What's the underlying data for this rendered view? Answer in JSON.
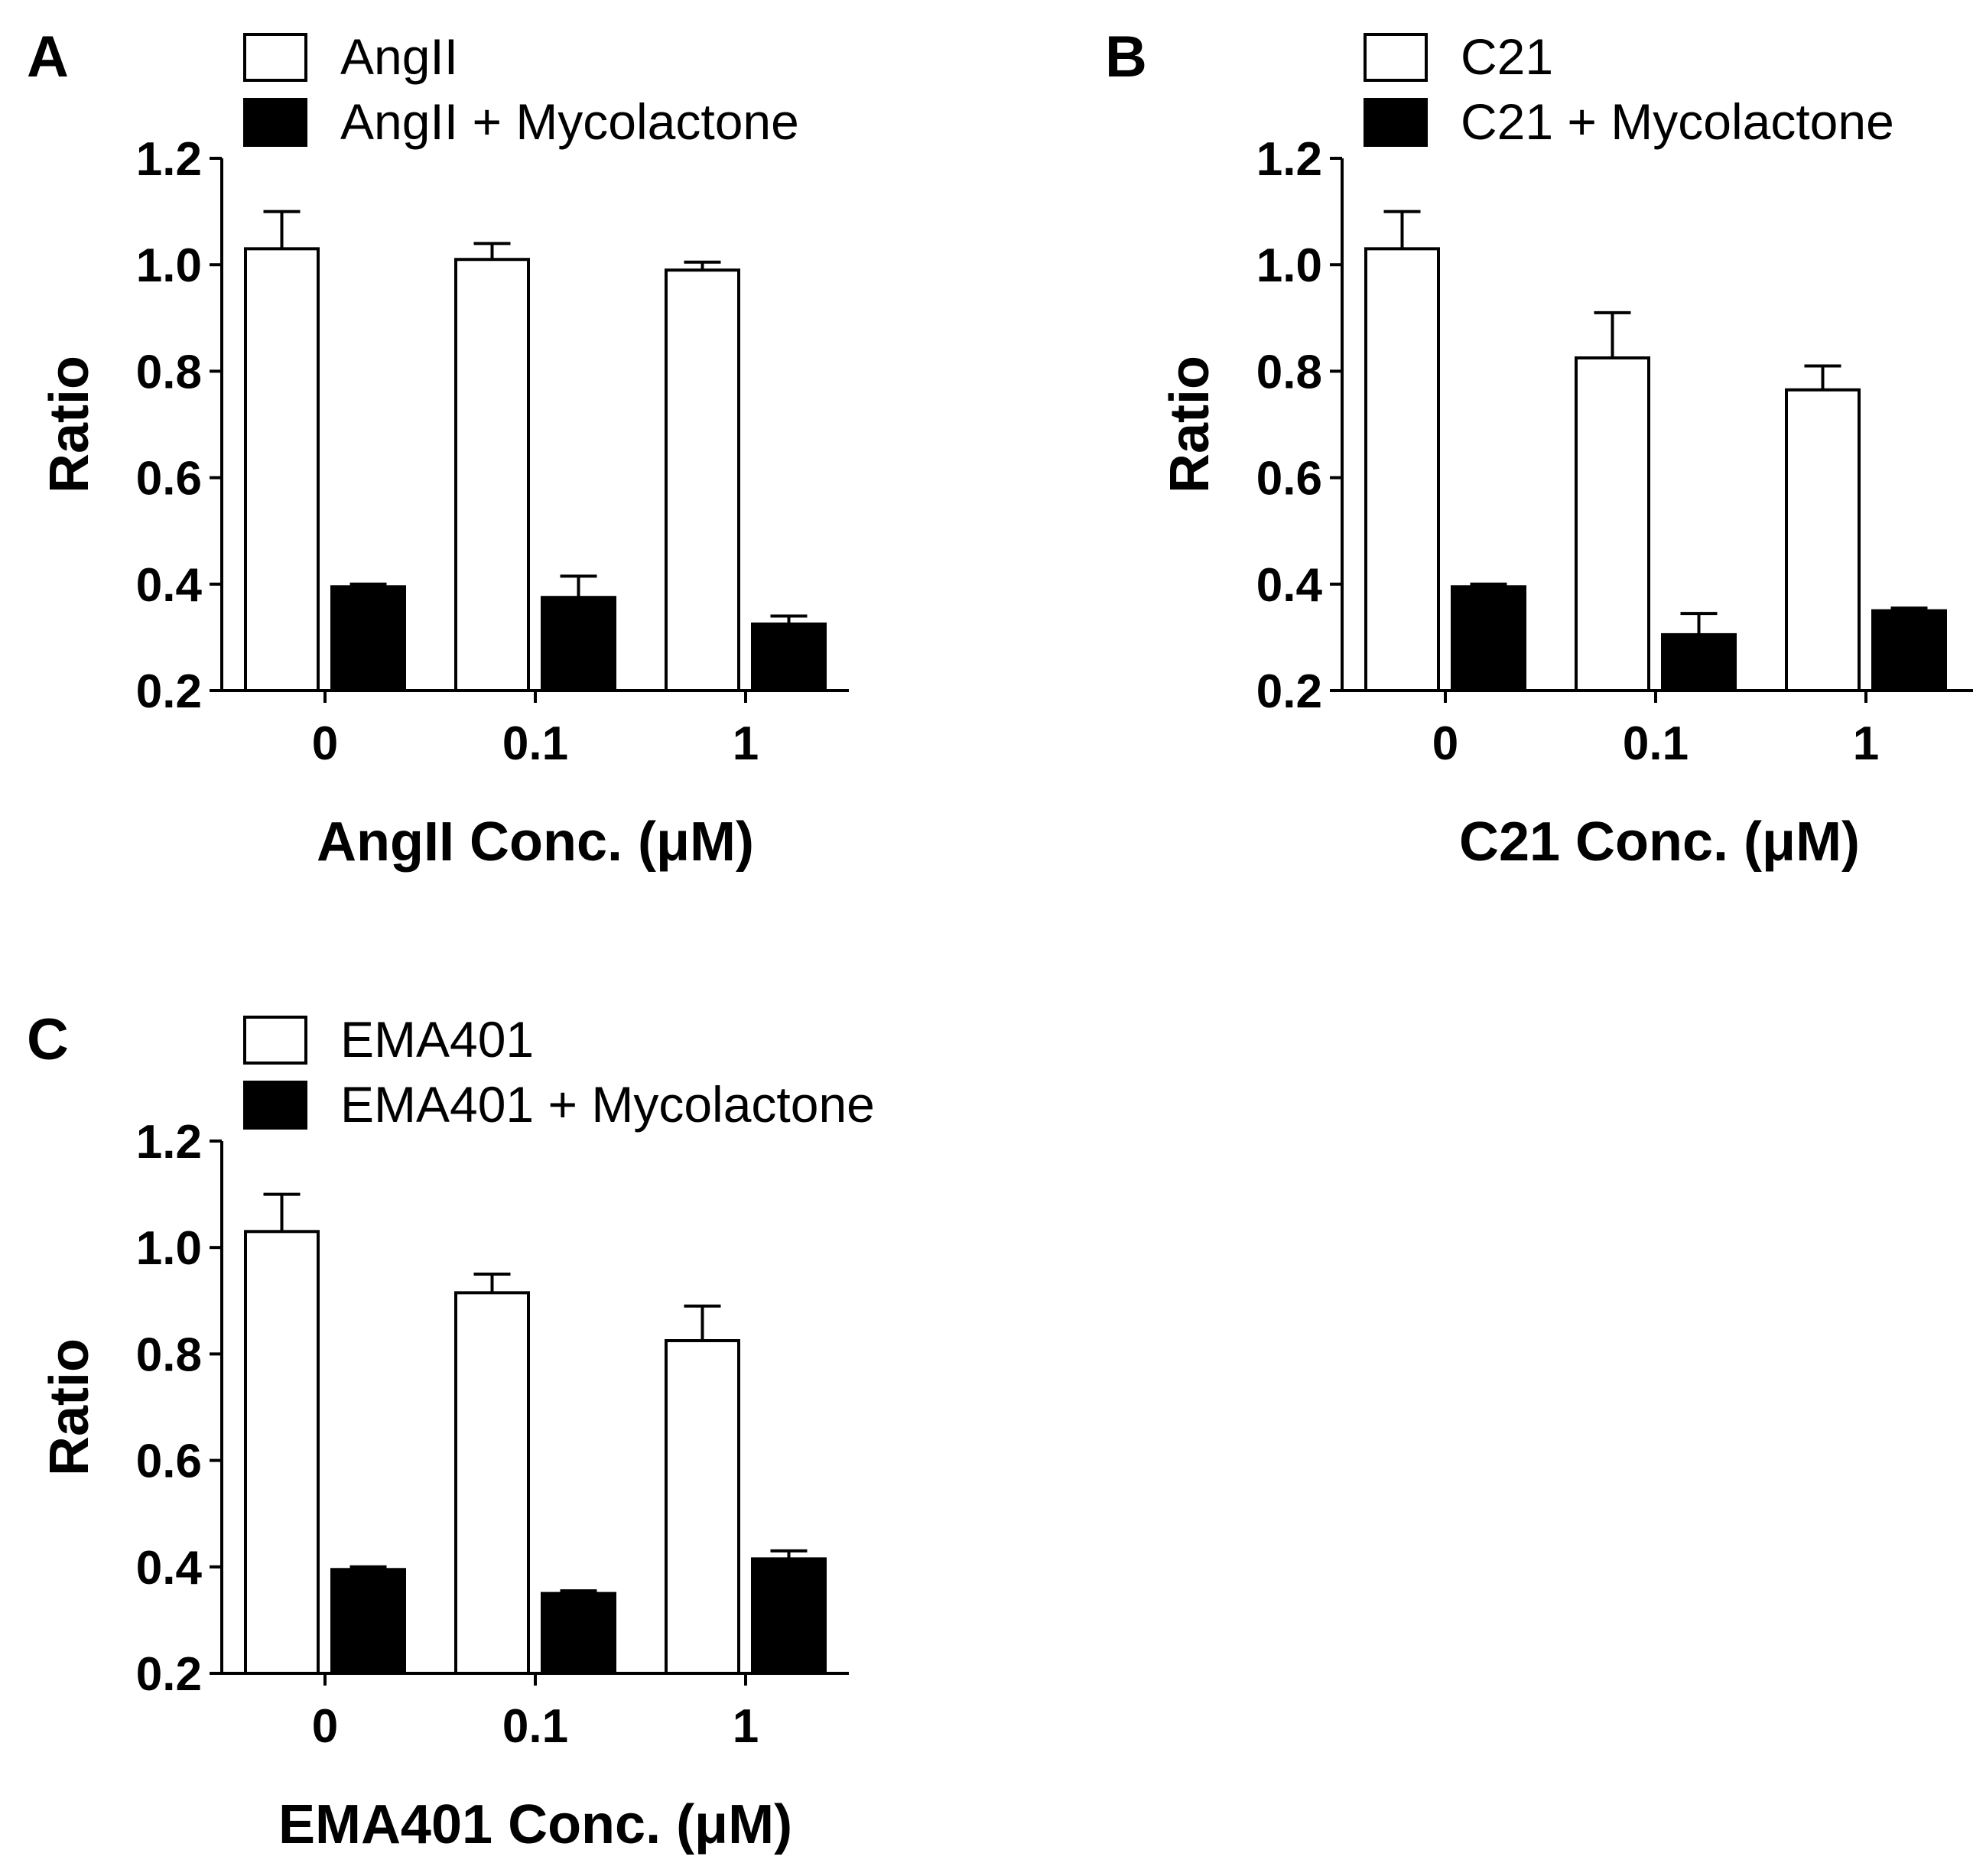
{
  "figure": {
    "colors": {
      "background": "#ffffff",
      "ink": "#000000",
      "open_bar_fill": "#ffffff",
      "filled_bar_fill": "#000000"
    }
  },
  "chart_data": [
    {
      "type": "bar",
      "panel": "A",
      "title": "",
      "xlabel": "AngII Conc. (μM)",
      "ylabel": "Ratio",
      "ylim": [
        0.2,
        1.2
      ],
      "yticks": [
        "0.2",
        "0.4",
        "0.6",
        "0.8",
        "1.0",
        "1.2"
      ],
      "categories": [
        "0",
        "0.1",
        "1"
      ],
      "legend_position": "top-left",
      "series": [
        {
          "name": "AngII",
          "fill": "open",
          "values": [
            1.03,
            1.01,
            0.99
          ],
          "errors": [
            0.07,
            0.03,
            0.015
          ]
        },
        {
          "name": "AngII + Mycolactone",
          "fill": "solid",
          "values": [
            0.395,
            0.375,
            0.325
          ],
          "errors": [
            0.005,
            0.04,
            0.015
          ]
        }
      ]
    },
    {
      "type": "bar",
      "panel": "B",
      "title": "",
      "xlabel": "C21 Conc. (μM)",
      "ylabel": "Ratio",
      "ylim": [
        0.2,
        1.2
      ],
      "yticks": [
        "0.2",
        "0.4",
        "0.6",
        "0.8",
        "1.0",
        "1.2"
      ],
      "categories": [
        "0",
        "0.1",
        "1"
      ],
      "legend_position": "top-left",
      "series": [
        {
          "name": "C21",
          "fill": "open",
          "values": [
            1.03,
            0.825,
            0.765
          ],
          "errors": [
            0.07,
            0.085,
            0.045
          ]
        },
        {
          "name": "C21 + Mycolactone",
          "fill": "solid",
          "values": [
            0.395,
            0.305,
            0.35
          ],
          "errors": [
            0.005,
            0.04,
            0.005
          ]
        }
      ]
    },
    {
      "type": "bar",
      "panel": "C",
      "title": "",
      "xlabel": "EMA401 Conc. (μM)",
      "ylabel": "Ratio",
      "ylim": [
        0.2,
        1.2
      ],
      "yticks": [
        "0.2",
        "0.4",
        "0.6",
        "0.8",
        "1.0",
        "1.2"
      ],
      "categories": [
        "0",
        "0.1",
        "1"
      ],
      "legend_position": "top-left",
      "series": [
        {
          "name": "EMA401",
          "fill": "open",
          "values": [
            1.03,
            0.915,
            0.825
          ],
          "errors": [
            0.07,
            0.035,
            0.065
          ]
        },
        {
          "name": "EMA401 + Mycolactone",
          "fill": "solid",
          "values": [
            0.395,
            0.35,
            0.415
          ],
          "errors": [
            0.005,
            0.005,
            0.015
          ]
        }
      ]
    }
  ]
}
